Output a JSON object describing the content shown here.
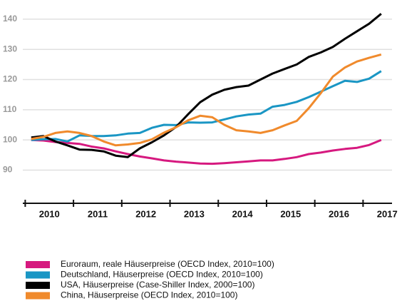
{
  "chart_data": {
    "type": "line",
    "categories": [
      "2010",
      "2011",
      "2012",
      "2013",
      "2014",
      "2015",
      "2016",
      "2017"
    ],
    "x": [
      2010.125,
      2010.375,
      2010.625,
      2010.875,
      2011.125,
      2011.375,
      2011.625,
      2011.875,
      2012.125,
      2012.375,
      2012.625,
      2012.875,
      2013.125,
      2013.375,
      2013.625,
      2013.875,
      2014.125,
      2014.375,
      2014.625,
      2014.875,
      2015.125,
      2015.375,
      2015.625,
      2015.875,
      2016.125,
      2016.375,
      2016.625,
      2016.875,
      2017.125,
      2017.375
    ],
    "series": [
      {
        "name": "Euroraum, reale Häuserpreise (OECD Index, 2010=100)",
        "color": "#d6197f",
        "values": [
          100.0,
          99.8,
          99.3,
          99.0,
          98.7,
          97.8,
          97.2,
          96.2,
          95.3,
          94.5,
          93.9,
          93.2,
          92.8,
          92.5,
          92.2,
          92.1,
          92.3,
          92.6,
          92.9,
          93.2,
          93.2,
          93.7,
          94.3,
          95.3,
          95.8,
          96.5,
          97.0,
          97.4,
          98.3,
          100.0
        ]
      },
      {
        "name": "Deutschland, Häuserpreise (OECD Index, 2010=100)",
        "color": "#1a96c4",
        "values": [
          100.0,
          100.2,
          100.3,
          99.5,
          101.5,
          101.3,
          101.3,
          101.5,
          102.1,
          102.3,
          104.0,
          105.0,
          104.9,
          105.8,
          105.7,
          105.8,
          106.8,
          107.8,
          108.4,
          108.7,
          111.0,
          111.6,
          112.6,
          114.2,
          116.0,
          117.8,
          119.6,
          119.2,
          120.3,
          122.8
        ]
      },
      {
        "name": "USA, Häuserpreise (Case-Shiller Index, 2000=100)",
        "color": "#000000",
        "values": [
          100.8,
          101.3,
          99.5,
          98.2,
          96.8,
          96.7,
          96.2,
          94.8,
          94.3,
          97.2,
          99.2,
          101.5,
          104.3,
          108.5,
          112.5,
          115.0,
          116.6,
          117.5,
          118.0,
          120.0,
          122.0,
          123.5,
          125.0,
          127.5,
          129.0,
          130.8,
          133.5,
          136.0,
          138.5,
          141.8
        ]
      },
      {
        "name": "China, Häuserpreise (OECD Index, 2010=100)",
        "color": "#f08a2c",
        "values": [
          100.3,
          101.0,
          102.3,
          102.8,
          102.3,
          101.3,
          99.5,
          98.2,
          98.5,
          99.0,
          100.2,
          102.4,
          104.2,
          106.5,
          108.0,
          107.5,
          105.0,
          103.2,
          102.8,
          102.3,
          103.2,
          104.8,
          106.3,
          110.5,
          115.5,
          121.0,
          124.0,
          126.0,
          127.2,
          128.3
        ]
      }
    ],
    "xlim": [
      2009.95,
      2017.6
    ],
    "xticks": [
      2010,
      2011,
      2012,
      2013,
      2014,
      2015,
      2016,
      2017
    ],
    "ylim": [
      79,
      144
    ],
    "yticks": [
      90,
      100,
      110,
      120,
      130,
      140
    ],
    "grid": true
  }
}
